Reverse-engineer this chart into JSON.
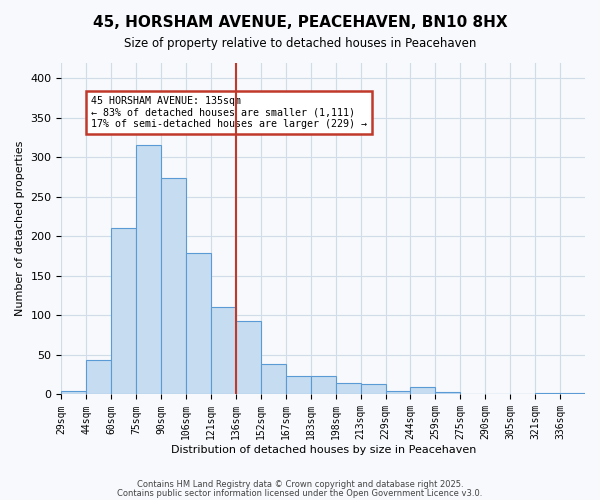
{
  "title": "45, HORSHAM AVENUE, PEACEHAVEN, BN10 8HX",
  "subtitle": "Size of property relative to detached houses in Peacehaven",
  "xlabel": "Distribution of detached houses by size in Peacehaven",
  "ylabel": "Number of detached properties",
  "bin_labels": [
    "29sqm",
    "44sqm",
    "60sqm",
    "75sqm",
    "90sqm",
    "106sqm",
    "121sqm",
    "136sqm",
    "152sqm",
    "167sqm",
    "183sqm",
    "198sqm",
    "213sqm",
    "229sqm",
    "244sqm",
    "259sqm",
    "275sqm",
    "290sqm",
    "305sqm",
    "321sqm",
    "336sqm"
  ],
  "bar_heights": [
    5,
    44,
    211,
    315,
    274,
    179,
    111,
    93,
    38,
    24,
    24,
    15,
    13,
    5,
    10,
    3,
    0,
    0,
    0,
    2,
    2
  ],
  "bar_color": "#c6dcf0",
  "bar_edge_color": "#5b9bd5",
  "vline_x": 7,
  "vline_color": "#c0392b",
  "annotation_title": "45 HORSHAM AVENUE: 135sqm",
  "annotation_line1": "← 83% of detached houses are smaller (1,111)",
  "annotation_line2": "17% of semi-detached houses are larger (229) →",
  "annotation_box_edge": "#c0392b",
  "ylim": [
    0,
    420
  ],
  "yticks": [
    0,
    50,
    100,
    150,
    200,
    250,
    300,
    350,
    400
  ],
  "footer1": "Contains HM Land Registry data © Crown copyright and database right 2025.",
  "footer2": "Contains public sector information licensed under the Open Government Licence v3.0.",
  "bg_color": "#f7f9fc",
  "grid_color": "#d0dce8"
}
